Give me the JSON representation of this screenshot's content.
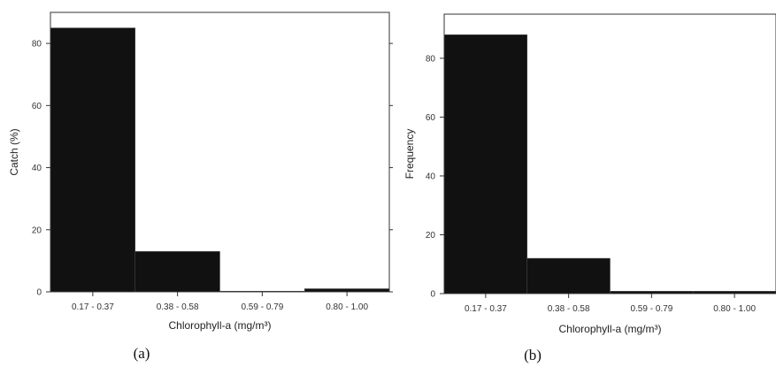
{
  "chart_data": [
    {
      "type": "bar",
      "panel_label": "(a)",
      "categories": [
        "0.17 - 0.37",
        "0.38 - 0.58",
        "0.59 - 0.79",
        "0.80 - 1.00"
      ],
      "values": [
        85,
        13,
        0.2,
        1
      ],
      "xlabel": "Chlorophyll-a (mg/m³)",
      "ylabel": "Catch (%)",
      "ylim": [
        0,
        90
      ],
      "yticks": [
        0,
        20,
        40,
        60,
        80
      ],
      "bar_color": "#111111",
      "grid": false
    },
    {
      "type": "bar",
      "panel_label": "(b)",
      "categories": [
        "0.17 - 0.37",
        "0.38 - 0.58",
        "0.59 - 0.79",
        "0.80 - 1.00"
      ],
      "values": [
        88,
        12,
        0.8,
        0.8
      ],
      "xlabel": "Chlorophyll-a (mg/m³)",
      "ylabel": "Frequency",
      "ylim": [
        0,
        95
      ],
      "yticks": [
        0,
        20,
        40,
        60,
        80
      ],
      "bar_color": "#111111",
      "grid": false
    }
  ]
}
